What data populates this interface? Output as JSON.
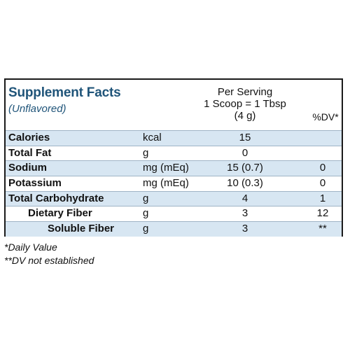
{
  "label": {
    "title": "Supplement Facts",
    "subtitle": "(Unflavored)",
    "serving": {
      "line1": "Per Serving",
      "line2": "1 Scoop = 1 Tbsp",
      "line3": "(4 g)"
    },
    "dv_header": "%DV*"
  },
  "rows": [
    {
      "name": "Calories",
      "unit": "kcal",
      "amount": "15",
      "dv": ""
    },
    {
      "name": "Total Fat",
      "unit": "g",
      "amount": "0",
      "dv": ""
    },
    {
      "name": "Sodium",
      "unit": "mg (mEq)",
      "amount": "15 (0.7)",
      "dv": "0"
    },
    {
      "name": "Potassium",
      "unit": "mg (mEq)",
      "amount": "10 (0.3)",
      "dv": "0"
    },
    {
      "name": "Total Carbohydrate",
      "unit": "g",
      "amount": "4",
      "dv": "1"
    },
    {
      "name": "Dietary Fiber",
      "unit": "g",
      "amount": "3",
      "dv": "12"
    },
    {
      "name": "Soluble Fiber",
      "unit": "g",
      "amount": "3",
      "dv": "**"
    }
  ],
  "footnotes": {
    "daily_value": "*Daily Value",
    "dv_not_established": "**DV not established"
  },
  "colors": {
    "title": "#1f5479",
    "row_shade": "#d7e6f2",
    "border": "#1a1a1a"
  }
}
